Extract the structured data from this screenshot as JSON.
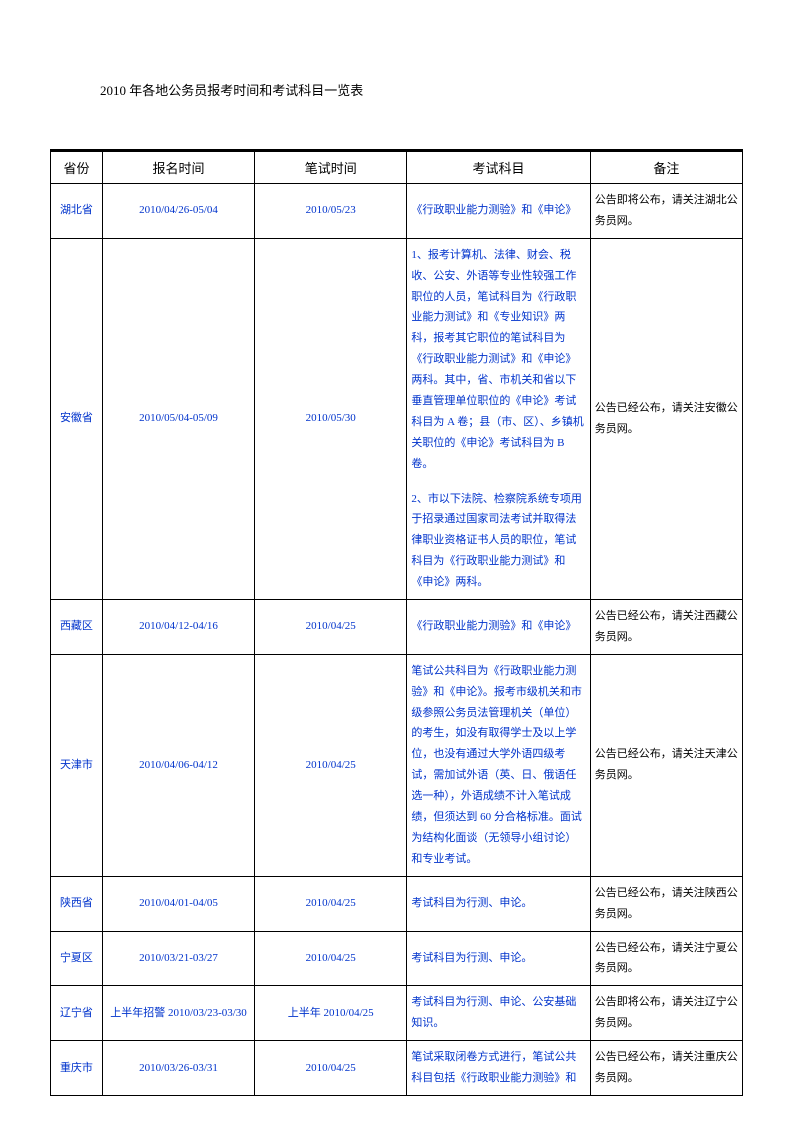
{
  "page_title": "2010 年各地公务员报考时间和考试科目一览表",
  "table": {
    "headers": {
      "province": "省份",
      "reg_time": "报名时间",
      "exam_time": "笔试时间",
      "subject": "考试科目",
      "remark": "备注"
    },
    "col_widths": {
      "province": "7.5%",
      "reg_time": "22%",
      "exam_time": "22%",
      "subject": "26.5%",
      "remark": "22%"
    },
    "colors": {
      "link": "#0033cc",
      "text": "#000000",
      "border": "#000000",
      "background": "#ffffff"
    },
    "font_sizes": {
      "title": 13,
      "header": 13,
      "cell": 11
    },
    "rows": [
      {
        "province": "湖北省",
        "reg_time": "2010/04/26-05/04",
        "exam_time": "2010/05/23",
        "subject_parts": [
          "《行政职业能力测验》和《申论》"
        ],
        "remark": "公告即将公布，请关注湖北公务员网。"
      },
      {
        "province": "安徽省",
        "reg_time": "2010/05/04-05/09",
        "exam_time": "2010/05/30",
        "subject_parts": [
          "1、报考计算机、法律、财会、税收、公安、外语等专业性较强工作职位的人员，笔试科目为《行政职业能力测试》和《专业知识》两科，报考其它职位的笔试科目为《行政职业能力测试》和《申论》两科。其中，省、市机关和省以下垂直管理单位职位的《申论》考试科目为 A 卷；县（市、区）、乡镇机关职位的《申论》考试科目为 B 卷。",
          "2、市以下法院、检察院系统专项用于招录通过国家司法考试并取得法律职业资格证书人员的职位，笔试科目为《行政职业能力测试》和《申论》两科。"
        ],
        "remark": "公告已经公布，请关注安徽公务员网。"
      },
      {
        "province": "西藏区",
        "reg_time": "2010/04/12-04/16",
        "exam_time": "2010/04/25",
        "subject_parts": [
          "《行政职业能力测验》和《申论》"
        ],
        "remark": "公告已经公布，请关注西藏公务员网。"
      },
      {
        "province": "天津市",
        "reg_time": "2010/04/06-04/12",
        "exam_time": "2010/04/25",
        "subject_parts": [
          "笔试公共科目为《行政职业能力测验》和《申论》。报考市级机关和市级参照公务员法管理机关（单位）的考生，如没有取得学士及以上学位，也没有通过大学外语四级考试，需加试外语（英、日、俄语任选一种），外语成绩不计入笔试成绩，但须达到 60 分合格标准。面试为结构化面谈（无领导小组讨论）和专业考试。"
        ],
        "remark": "公告已经公布，请关注天津公务员网。"
      },
      {
        "province": "陕西省",
        "reg_time": "2010/04/01-04/05",
        "exam_time": "2010/04/25",
        "subject_parts": [
          "考试科目为行测、申论。"
        ],
        "remark": "公告已经公布，请关注陕西公务员网。"
      },
      {
        "province": "宁夏区",
        "reg_time": "2010/03/21-03/27",
        "exam_time": "2010/04/25",
        "subject_parts": [
          "考试科目为行测、申论。"
        ],
        "remark": "公告已经公布，请关注宁夏公务员网。"
      },
      {
        "province": "辽宁省",
        "reg_time": "上半年招警 2010/03/23-03/30",
        "exam_time": "上半年 2010/04/25",
        "subject_parts": [
          "考试科目为行测、申论、公安基础知识。"
        ],
        "remark": "公告即将公布，请关注辽宁公务员网。"
      },
      {
        "province": "重庆市",
        "reg_time": "2010/03/26-03/31",
        "exam_time": "2010/04/25",
        "subject_parts": [
          "笔试采取闭卷方式进行，笔试公共科目包括《行政职业能力测验》和"
        ],
        "remark": "公告已经公布，请关注重庆公务员网。"
      }
    ]
  }
}
